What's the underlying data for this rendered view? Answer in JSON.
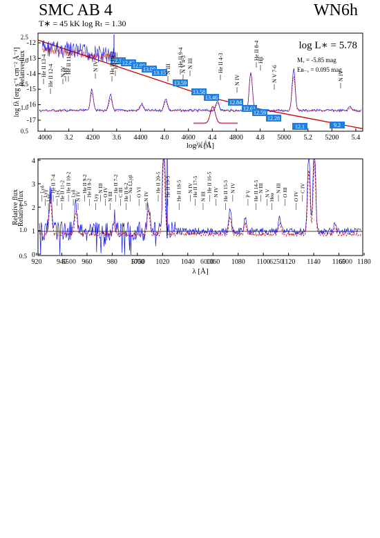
{
  "header": {
    "star_name": "SMC AB 4",
    "spectral_type": "WN6h",
    "params": "T∗ =  45 kK  log Rₜ = 1.30"
  },
  "chart_data": [
    {
      "type": "line",
      "id": "sed",
      "xlabel": "log λ [Å]",
      "xlabel_overlap": "λ [Å]",
      "ylabel": "log fλ [erg s⁻¹ cm⁻² Å⁻¹]",
      "ylabel_overlap": "Relative flux",
      "x_ticks": [
        "4000",
        "3.2",
        "4200",
        "3.6",
        "4400",
        "4.0",
        "4600",
        "4.4",
        "4800",
        "4.8",
        "5000",
        "5.2",
        "5200",
        "5.4"
      ],
      "y_ticks_left": [
        "-12",
        "-13",
        "-14",
        "-15",
        "-16",
        "-17"
      ],
      "y_ticks_overlap": [
        "2.5",
        "2.0",
        "1.5",
        "1.0",
        "0.5"
      ],
      "annotation": {
        "text": "log L∗ =  5.78",
        "mv": "Mᵥ = -5.85 mag",
        "ebv": "Eʙ₋ᵥ = 0.095 mag"
      },
      "photometry_labels": [
        "12.74",
        "12.88",
        "12.90",
        "13.00",
        "13.15",
        "13.59",
        "13.58",
        "13.46",
        "12.84",
        "12.61",
        "12.59",
        "12.28",
        "12.1",
        "9.2"
      ],
      "line_labels": [
        "He II 13-4",
        "He II 12-4",
        "N IV",
        "Hδ",
        "He II 11-4",
        "N IV",
        "He II 10-4",
        "Hγ",
        "N III",
        "He II 9-4",
        "N V 4-3",
        "N III",
        "He II 4-3",
        "N IV",
        "He II 8-4",
        "Hβ",
        "N V 7-6",
        "N IV"
      ],
      "continuum": [
        [
          3.6,
          -12.7
        ],
        [
          3.7,
          -13.05
        ],
        [
          3.8,
          -13.4
        ],
        [
          3.9,
          -13.75
        ],
        [
          4.0,
          -14.1
        ],
        [
          4.1,
          -14.45
        ],
        [
          4.2,
          -14.8
        ],
        [
          4.3,
          -15.15
        ],
        [
          4.4,
          -15.5
        ],
        [
          4.5,
          -15.85
        ],
        [
          4.6,
          -16.15
        ],
        [
          4.7,
          -16.4
        ],
        [
          4.8,
          -16.65
        ],
        [
          4.9,
          -16.85
        ],
        [
          5.0,
          -17.05
        ],
        [
          5.2,
          -17.45
        ],
        [
          5.4,
          -17.85
        ]
      ]
    },
    {
      "type": "line",
      "id": "normalized",
      "xlabel": "λ [Å]",
      "ylabel": "Relative flux",
      "x_ticks": [
        "920",
        "940",
        "960",
        "980",
        "1000",
        "1020",
        "1040",
        "1060",
        "1080",
        "1100",
        "1120",
        "1140",
        "1160",
        "1180"
      ],
      "x_ticks_overlap": [
        "5500",
        "5750",
        "6000",
        "6250",
        "6500",
        "6750"
      ],
      "y_ticks": [
        "4",
        "3",
        "2",
        "1",
        "0"
      ],
      "y_ticks_overlap": [
        "1.5",
        "1.0",
        "0.5"
      ],
      "line_labels": [
        "Lyδ",
        "Lyγ",
        "Lyε",
        "He II 7-4",
        "Lyζ",
        "He II 11-2",
        "He II 10-2",
        "Lyδ",
        "N IV",
        "He II 9-2",
        "He II 8-2",
        "Lyγ",
        "N III",
        "O IV",
        "N III",
        "He II 7-2",
        "C III",
        "He II 6-2",
        "Na I,Lyβ",
        "O VI",
        "N IV",
        "He II 20-5",
        "He II 19-5",
        "He II 18-5",
        "N IV",
        "He II 17-5",
        "N III",
        "He II 16-5",
        "N IV",
        "He II 15-5",
        "N IV",
        "P V",
        "He II 14-5",
        "N III",
        "N V",
        "Heα",
        "N III",
        "O III",
        "O IV",
        "C IV"
      ]
    }
  ]
}
